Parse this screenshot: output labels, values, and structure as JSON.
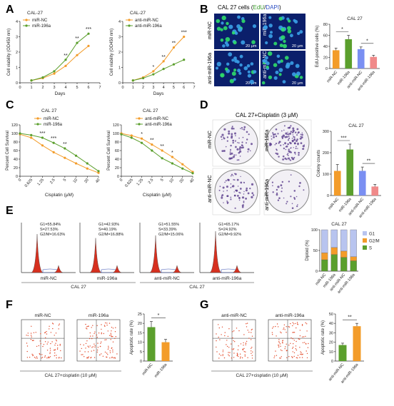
{
  "colors": {
    "orange": "#f39c2a",
    "green": "#5b9f2d",
    "blue": "#7a8ff2",
    "salmon": "#f08a8a",
    "red": "#d6301f",
    "dotRed": "#e34a2a",
    "purple": "#5b3f8d",
    "gray": "#999999"
  },
  "panelA": {
    "letter": "A",
    "left": {
      "title": "CAL-27",
      "legend": [
        "miR-NC",
        "miR-196a"
      ],
      "ylabel": "Cell viability (OD450 nm)",
      "xlabel": "Days",
      "stars": [
        "**",
        "**",
        "***"
      ]
    },
    "right": {
      "title": "CAL-27",
      "legend": [
        "anti-miR-NC",
        "anti-miR-196a"
      ],
      "ylabel": "Cell viability (OD450 nm)",
      "xlabel": "Days",
      "stars": [
        "*",
        "**",
        "**",
        "***"
      ]
    },
    "yticks": [
      "0",
      "1",
      "2",
      "3",
      "4"
    ],
    "xticks": [
      "0",
      "1",
      "2",
      "3",
      "4",
      "5",
      "6",
      "7"
    ]
  },
  "panelB": {
    "letter": "B",
    "title_pre": "CAL 27 cells (",
    "title_edu": "EdU",
    "title_slash": "/",
    "title_dapi": "DAPI",
    "title_post": ")",
    "rowLabels": [
      "miR-NC",
      "anti-miR-196a"
    ],
    "colLabels": [
      "miR-196a",
      "anti-miR-NC"
    ],
    "scale": "20 μm",
    "chartTitle": "CAL 27",
    "ylabel": "EdU-positive cells (%)",
    "yticks": [
      "0",
      "20",
      "40",
      "60",
      "80"
    ],
    "categories": [
      "miR-NC",
      "miR-196a",
      "anti-miR-NC",
      "anti-miR-196a"
    ],
    "stars": [
      "*",
      "*"
    ]
  },
  "panelC": {
    "letter": "C",
    "left": {
      "title": "CAL 27",
      "legend": [
        "miR-NC",
        "miR-196a"
      ],
      "stars": [
        "***",
        "***",
        "**"
      ]
    },
    "right": {
      "title": "CAL 27",
      "legend": [
        "anti-miR-NC",
        "anti-miR-196a"
      ],
      "stars": [
        "*",
        "**",
        "**",
        "*"
      ]
    },
    "ylabel": "Percent Cell Survival",
    "xlabel": "Cisplatin (μM)",
    "yticks": [
      "0",
      "20",
      "40",
      "60",
      "80",
      "100",
      "120"
    ],
    "xticks": [
      "0",
      "0.625",
      "1.25",
      "2.5",
      "5",
      "10",
      "20",
      "40"
    ]
  },
  "panelD": {
    "letter": "D",
    "title": "CAL 27+Cisplatin (3 μM)",
    "rowLabels": [
      "miR-NC",
      "anti-miR-NC"
    ],
    "colLabels": [
      "miR-196a",
      "anti-miR-196a"
    ],
    "chartTitle": "CAL 27",
    "ylabel": "Colony counts",
    "yticks": [
      "0",
      "100",
      "200",
      "300"
    ],
    "categories": [
      "miR-NC",
      "miR-196a",
      "anti-miR-NC",
      "anti-miR-196a"
    ],
    "stars": [
      "***",
      "**"
    ]
  },
  "panelE": {
    "letter": "E",
    "histos": [
      {
        "g1": "G1=55.84%",
        "s": "S=27.53%",
        "g2": "G2/M=16.63%",
        "label": "miR-NC"
      },
      {
        "g1": "G1=42.93%",
        "s": "S=40.19%",
        "g2": "G2/M=16.88%",
        "label": "miR-196a"
      },
      {
        "g1": "G1=51.55%",
        "s": "S=33.39%",
        "g2": "G2/M=15.06%",
        "label": "anti-miR-NC"
      },
      {
        "g1": "G1=65.17%",
        "s": "S=24.92%",
        "g2": "G2/M=9.92%",
        "label": "anti-miR-196a"
      }
    ],
    "groupLabel": "CAL 27",
    "chartTitle": "CAL 27",
    "ylabel": "Diploid (%)",
    "yticks": [
      "0",
      "50",
      "100"
    ],
    "legend": [
      "G1",
      "G2/M",
      "S"
    ],
    "categories": [
      "miR-NC",
      "miR-196a",
      "anti-miR-NC",
      "anti-miR-196a"
    ]
  },
  "panelF": {
    "letter": "F",
    "plots": [
      "miR-NC",
      "miR-196a"
    ],
    "caption": "CAL 27+cisplatin (10 μM)",
    "ylabel": "Apoptotic rate (%)",
    "yticks": [
      "0",
      "5",
      "10",
      "15",
      "20",
      "25"
    ],
    "categories": [
      "miR-NC",
      "miR-196a"
    ],
    "stars": [
      "*"
    ]
  },
  "panelG": {
    "letter": "G",
    "plots": [
      "anti-miR-NC",
      "anti-miR-196a"
    ],
    "caption": "CAL 27+cisplatin (10 μM)",
    "ylabel": "Apoptotic rate (%)",
    "yticks": [
      "0",
      "10",
      "20",
      "30",
      "40",
      "50"
    ],
    "categories": [
      "anti-miR-NC",
      "anti-miR-196a"
    ],
    "stars": [
      "**"
    ]
  },
  "chart_data": [
    {
      "panel": "A-left",
      "type": "line",
      "title": "CAL-27",
      "xlabel": "Days",
      "ylabel": "Cell viability (OD450 nm)",
      "ylim": [
        0,
        4
      ],
      "x": [
        1,
        2,
        3,
        4,
        5,
        6
      ],
      "series": [
        {
          "name": "miR-NC",
          "values": [
            0.15,
            0.3,
            0.6,
            1.1,
            1.8,
            2.4
          ]
        },
        {
          "name": "miR-196a",
          "values": [
            0.15,
            0.35,
            0.75,
            1.5,
            2.6,
            3.2
          ]
        }
      ]
    },
    {
      "panel": "A-right",
      "type": "line",
      "title": "CAL-27",
      "xlabel": "Days",
      "ylabel": "Cell viability (OD450 nm)",
      "ylim": [
        0,
        4
      ],
      "x": [
        1,
        2,
        3,
        4,
        5,
        6
      ],
      "series": [
        {
          "name": "anti-miR-NC",
          "values": [
            0.15,
            0.35,
            0.75,
            1.4,
            2.3,
            3.0
          ]
        },
        {
          "name": "anti-miR-196a",
          "values": [
            0.15,
            0.3,
            0.55,
            0.9,
            1.2,
            1.5
          ]
        }
      ]
    },
    {
      "panel": "B",
      "type": "bar",
      "title": "CAL 27",
      "ylabel": "EdU-positive cells (%)",
      "ylim": [
        0,
        80
      ],
      "categories": [
        "miR-NC",
        "miR-196a",
        "anti-miR-NC",
        "anti-miR-196a"
      ],
      "values": [
        33,
        53,
        35,
        21
      ]
    },
    {
      "panel": "C-left",
      "type": "line",
      "title": "CAL 27",
      "xlabel": "Cisplatin (μM)",
      "ylabel": "Percent Cell Survival",
      "ylim": [
        0,
        120
      ],
      "categories": [
        "0",
        "0.625",
        "1.25",
        "2.5",
        "5",
        "10",
        "20",
        "40"
      ],
      "series": [
        {
          "name": "miR-NC",
          "values": [
            98,
            90,
            72,
            56,
            43,
            30,
            18,
            8
          ]
        },
        {
          "name": "miR-196a",
          "values": [
            100,
            96,
            90,
            78,
            65,
            48,
            30,
            12
          ]
        }
      ]
    },
    {
      "panel": "C-right",
      "type": "line",
      "title": "CAL 27",
      "xlabel": "Cisplatin (μM)",
      "ylabel": "Percent Cell Survival",
      "ylim": [
        0,
        120
      ],
      "categories": [
        "0",
        "0.625",
        "1.25",
        "2.5",
        "5",
        "10",
        "20",
        "40"
      ],
      "series": [
        {
          "name": "anti-miR-NC",
          "values": [
            100,
            95,
            88,
            74,
            60,
            45,
            28,
            10
          ]
        },
        {
          "name": "anti-miR-196a",
          "values": [
            98,
            90,
            78,
            60,
            42,
            30,
            18,
            7
          ]
        }
      ]
    },
    {
      "panel": "D",
      "type": "bar",
      "title": "CAL 27",
      "ylabel": "Colony counts",
      "ylim": [
        0,
        300
      ],
      "categories": [
        "miR-NC",
        "miR-196a",
        "anti-miR-NC",
        "anti-miR-196a"
      ],
      "values": [
        115,
        215,
        115,
        42
      ]
    },
    {
      "panel": "E",
      "type": "bar",
      "title": "CAL 27",
      "ylabel": "Diploid (%)",
      "ylim": [
        0,
        100
      ],
      "categories": [
        "miR-NC",
        "miR-196a",
        "anti-miR-NC",
        "anti-miR-196a"
      ],
      "series": [
        {
          "name": "S",
          "values": [
            27.53,
            40.19,
            33.39,
            24.92
          ]
        },
        {
          "name": "G2/M",
          "values": [
            16.63,
            16.88,
            15.06,
            9.92
          ]
        },
        {
          "name": "G1",
          "values": [
            55.84,
            42.93,
            51.55,
            65.17
          ]
        }
      ]
    },
    {
      "panel": "F",
      "type": "bar",
      "ylabel": "Apoptotic rate (%)",
      "ylim": [
        0,
        25
      ],
      "categories": [
        "miR-NC",
        "miR-196a"
      ],
      "values": [
        18,
        10
      ]
    },
    {
      "panel": "G",
      "type": "bar",
      "ylabel": "Apoptotic rate (%)",
      "ylim": [
        0,
        50
      ],
      "categories": [
        "anti-miR-NC",
        "anti-miR-196a"
      ],
      "values": [
        17,
        37
      ]
    }
  ]
}
